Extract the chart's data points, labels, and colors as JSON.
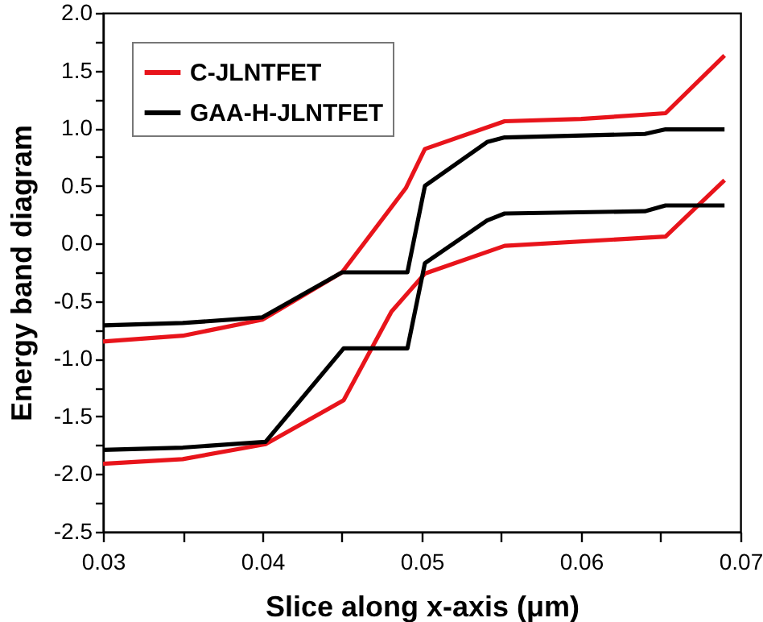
{
  "chart_data": {
    "type": "line",
    "xlabel": "Slice along x-axis (μm)",
    "ylabel": "Energy band diagram",
    "xlim": [
      0.03,
      0.07
    ],
    "ylim": [
      -2.5,
      2.0
    ],
    "xticks": [
      0.03,
      {
        "value": 0.035,
        "label": null
      },
      0.04,
      {
        "value": 0.045,
        "label": null
      },
      0.05,
      {
        "value": 0.055,
        "label": null
      },
      0.06,
      {
        "value": 0.065,
        "label": null
      },
      0.07
    ],
    "yticks": [
      {
        "value": -2.5,
        "label": "-2.5"
      },
      {
        "value": -2.25,
        "label": null
      },
      {
        "value": -2,
        "label": "-2.0"
      },
      {
        "value": -1.75,
        "label": null
      },
      {
        "value": -1.5,
        "label": "-1.5"
      },
      {
        "value": -1.25,
        "label": null
      },
      {
        "value": -1,
        "label": "-1.0"
      },
      {
        "value": -0.75,
        "label": null
      },
      {
        "value": -0.5,
        "label": "-0.5"
      },
      {
        "value": -0.25,
        "label": null
      },
      {
        "value": 0,
        "label": "0.0"
      },
      {
        "value": 0.25,
        "label": null
      },
      {
        "value": 0.5,
        "label": "0.5"
      },
      {
        "value": 0.75,
        "label": null
      },
      {
        "value": 1,
        "label": "1.0"
      },
      {
        "value": 1.25,
        "label": null
      },
      {
        "value": 1.5,
        "label": "1.5"
      },
      {
        "value": 1.75,
        "label": null
      },
      {
        "value": 2,
        "label": "2.0"
      }
    ],
    "grid": false,
    "legend": "top left",
    "marker": "none",
    "line_style": "solid",
    "series": [
      {
        "name": "C-JLNTFET",
        "color": "#e8141b",
        "x": [
          0.03,
          0.035,
          0.04,
          0.045,
          0.049,
          0.0502,
          0.0552,
          0.06,
          0.0653,
          0.069
        ],
        "values": [
          -0.85,
          -0.8,
          -0.66,
          -0.25,
          0.48,
          0.82,
          1.06,
          1.08,
          1.13,
          1.63
        ]
      },
      {
        "name": "GAA-H-JLNTFET",
        "color": "#000000",
        "x": [
          0.03,
          0.035,
          0.04,
          0.045,
          0.0491,
          0.0502,
          0.0541,
          0.0552,
          0.064,
          0.0653,
          0.069
        ],
        "values": [
          -0.71,
          -0.69,
          -0.64,
          -0.25,
          -0.25,
          0.5,
          0.88,
          0.92,
          0.95,
          0.99,
          0.99
        ]
      },
      {
        "color": "#e8141b",
        "x": [
          0.03,
          0.035,
          0.0402,
          0.0451,
          0.0481,
          0.0502,
          0.0552,
          0.0653,
          0.069
        ],
        "values": [
          -1.91,
          -1.87,
          -1.74,
          -1.36,
          -0.59,
          -0.26,
          -0.02,
          0.06,
          0.55
        ]
      },
      {
        "color": "#000000",
        "x": [
          0.03,
          0.035,
          0.0402,
          0.0451,
          0.0491,
          0.0502,
          0.0541,
          0.0552,
          0.064,
          0.0653,
          0.069
        ],
        "values": [
          -1.79,
          -1.77,
          -1.72,
          -0.91,
          -0.91,
          -0.17,
          0.2,
          0.26,
          0.28,
          0.33,
          0.33
        ]
      }
    ]
  }
}
